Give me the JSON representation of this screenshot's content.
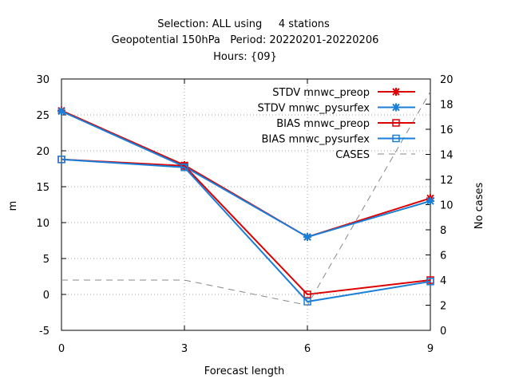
{
  "chart_data": {
    "type": "line",
    "title_lines": [
      "Selection: ALL using     4 stations",
      "Geopotential 150hPa   Period: 20220201-20220206",
      "Hours: {09}"
    ],
    "xlabel": "Forecast length",
    "ylabel": "m",
    "y2label": "No cases",
    "xlim": [
      0,
      9
    ],
    "ylim": [
      -5,
      30
    ],
    "y2lim": [
      0,
      20
    ],
    "xticks": [
      0,
      3,
      6,
      9
    ],
    "yticks": [
      -5,
      0,
      5,
      10,
      15,
      20,
      25,
      30
    ],
    "y2ticks": [
      0,
      2,
      4,
      6,
      8,
      10,
      12,
      14,
      16,
      18,
      20
    ],
    "grid": true,
    "legend_position": "top-right",
    "x": [
      0,
      3,
      6,
      9
    ],
    "series": [
      {
        "name": "STDV mnwc_preop",
        "axis": "y",
        "values": [
          25.6,
          18.0,
          8.0,
          13.4
        ],
        "color": "#dd0000",
        "marker": "star",
        "dash": "solid"
      },
      {
        "name": "STDV mnwc_pysurfex",
        "axis": "y",
        "values": [
          25.5,
          17.8,
          8.0,
          13.0
        ],
        "color": "#1a7fd9",
        "marker": "star",
        "dash": "solid"
      },
      {
        "name": "BIAS mnwc_preop",
        "axis": "y",
        "values": [
          18.8,
          17.9,
          0.0,
          2.0
        ],
        "color": "#dd0000",
        "marker": "square",
        "dash": "solid"
      },
      {
        "name": "BIAS mnwc_pysurfex",
        "axis": "y",
        "values": [
          18.8,
          17.7,
          -1.0,
          1.8
        ],
        "color": "#1a7fd9",
        "marker": "square",
        "dash": "solid"
      },
      {
        "name": "CASES",
        "axis": "y2",
        "values": [
          4,
          4,
          2,
          19
        ],
        "color": "#888888",
        "marker": "none",
        "dash": "dashed"
      }
    ]
  }
}
